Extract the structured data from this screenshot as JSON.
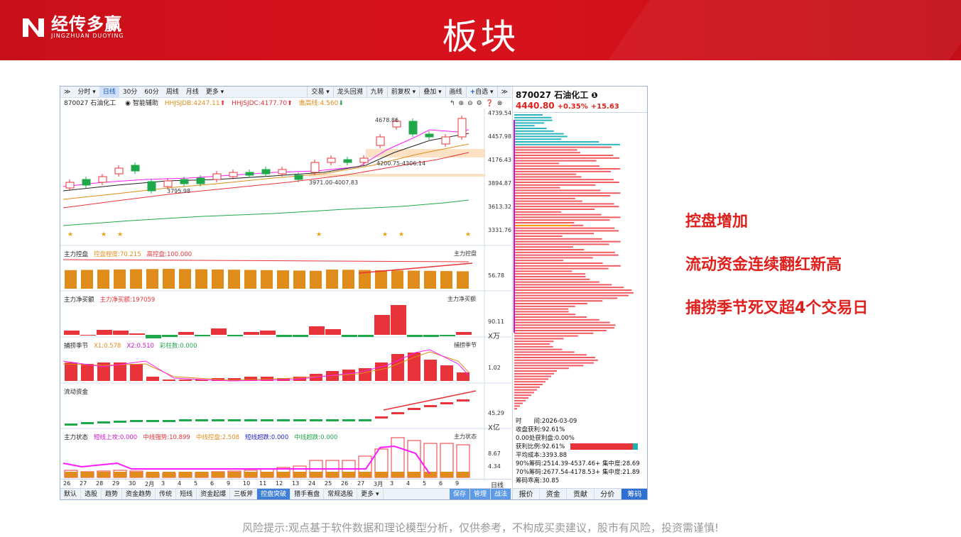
{
  "banner": {
    "logo_cn": "经传多赢",
    "logo_en": "JINGZHUAN DUOYING",
    "title": "板块"
  },
  "toolbar": {
    "left": [
      "分时",
      "日线",
      "30分",
      "60分",
      "周线",
      "月线",
      "更多"
    ],
    "right": [
      "交易",
      "龙头回溯",
      "九转",
      "前复权",
      "叠加",
      "画线",
      "自选"
    ]
  },
  "info": {
    "code": "870027 石油化工",
    "assist": "智能辅助",
    "hhjsjdb": "HHJSJDB:4247.11",
    "hhjsjdc": "HHJSJDC:4177.70",
    "qiaogao": "谯高线:4.560"
  },
  "price_axis": [
    "4739.54",
    "4457.98",
    "4176.43",
    "3894.87",
    "3613.32",
    "3331.76"
  ],
  "annotations": {
    "high": "4678.86",
    "low": "3795.98",
    "band1": "4200.75-4306.14",
    "band2": "3971.00-4007.83"
  },
  "panels": {
    "kongpan": {
      "name": "主力控盘",
      "a": "控盘程度:70.215",
      "b": "高控盘:100.000",
      "axis": "56.78"
    },
    "jingmai": {
      "name": "主力净买额",
      "a": "主力净买额:197059",
      "axis1": "90.11",
      "axis2": "X万"
    },
    "bulao": {
      "name": "捕捞季节",
      "a": "X1:0.578",
      "b": "X2:0.510",
      "c": "彩柱数:0.000",
      "axis": "1.02"
    },
    "liudong": {
      "name": "流动资金",
      "axis1": "45.29",
      "axis2": "X亿"
    },
    "zhuangtai": {
      "name": "主力状态",
      "a": "短线上攻:0.000",
      "b": "中线强势:10.899",
      "c": "中线控盘:2.508",
      "d": "短线超跌:0.000",
      "e": "中线超跌:0.000",
      "axis1": "8.67",
      "axis2": "4.34"
    }
  },
  "dates": [
    "26",
    "27",
    "28",
    "29",
    "30",
    "2月",
    "3",
    "4",
    "5",
    "6",
    "9",
    "10",
    "11",
    "12",
    "13",
    "24",
    "25",
    "26",
    "27",
    "3月",
    "3",
    "4",
    "5",
    "6",
    "9"
  ],
  "date_end": "日线",
  "bottom_tabs": [
    "默认",
    "选股",
    "趋势",
    "资金趋势",
    "传统",
    "短线",
    "资金起爆",
    "三板斧",
    "控盘突破",
    "猎手看盘",
    "常规选股",
    "更多",
    "保存",
    "管理",
    "战法"
  ],
  "right_panel": {
    "title": "870027 石油化工",
    "price": "4440.80",
    "chg": "+0.35%",
    "amt": "+15.63",
    "stats": [
      "时　　间:2026-03-09",
      "收盘获利:92.61%",
      "0.00处获利盘:0.00%",
      "获利比例:92.61%",
      "平均成本:3393.88",
      "90%筹码:2514.39-4537.46+ 集中度:28.69",
      "70%筹码:2677.54-4178.53+ 集中度:21.89",
      "筹码乖离:30.85"
    ],
    "tabs": [
      "报价",
      "资金",
      "贡献",
      "分价",
      "筹码"
    ]
  },
  "points": [
    "控盘增加",
    "流动资金连续翻红新高",
    "捕捞季节死叉超4个交易日"
  ],
  "footer": "风险提示:观点基于软件数据和理论模型分析，仅供参考，不构成买卖建议，股市有风险，投资需谨慎!",
  "colors": {
    "red": "#e8333a",
    "green": "#1ea84a",
    "orange": "#e08c1a",
    "magenta": "#ff1aff",
    "accent": "#d8121c"
  }
}
